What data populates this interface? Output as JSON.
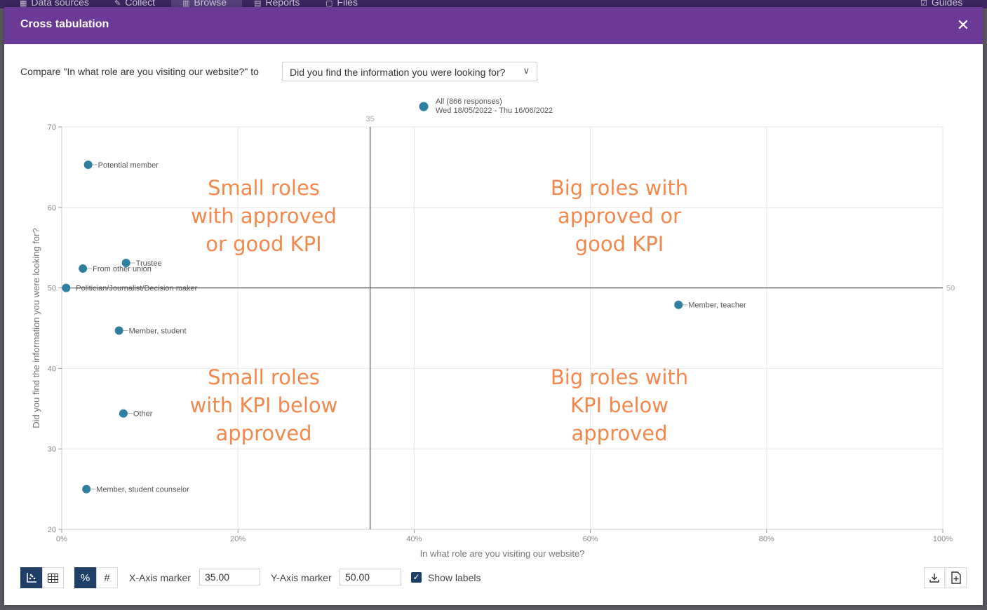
{
  "background_nav": {
    "items": [
      {
        "icon": "data-sources-icon",
        "label": "Data sources"
      },
      {
        "icon": "edit-icon",
        "label": "Collect"
      },
      {
        "icon": "chart-icon",
        "label": "Browse"
      },
      {
        "icon": "reports-icon",
        "label": "Reports"
      },
      {
        "icon": "folder-icon",
        "label": "Files"
      }
    ],
    "guides": "Guides"
  },
  "modal": {
    "title": "Cross tabulation",
    "compare_label": "Compare \"In what role are you visiting our website?\" to",
    "compare_select": "Did you find the information you were looking for?"
  },
  "colors": {
    "header": "#6b3a96",
    "point": "#2e7fa0",
    "annotation": "#f4874b",
    "active_button": "#1f3f66"
  },
  "chart_data": {
    "type": "scatter",
    "legend": {
      "label": "All (866 responses)",
      "date_range": "Wed 18/05/2022 - Thu 16/06/2022"
    },
    "xlabel": "In what role are you visiting our website?",
    "ylabel": "Did you find the information you were looking for?",
    "xlim": [
      0,
      100
    ],
    "ylim": [
      20,
      70
    ],
    "x_ticks": [
      0,
      20,
      40,
      60,
      80,
      100
    ],
    "x_tick_labels": [
      "0%",
      "20%",
      "40%",
      "60%",
      "80%",
      "100%"
    ],
    "y_ticks": [
      20,
      30,
      40,
      50,
      60,
      70
    ],
    "y_tick_labels": [
      "20",
      "30",
      "40",
      "50",
      "60",
      "70"
    ],
    "x_marker": 35,
    "x_marker_label": "35",
    "y_marker": 50,
    "y_marker_label": "50",
    "grid": true,
    "points": [
      {
        "label": "Potential member",
        "x": 3.0,
        "y": 65.3
      },
      {
        "label": "Trustee",
        "x": 7.3,
        "y": 53.1
      },
      {
        "label": "From other union",
        "x": 2.4,
        "y": 52.4
      },
      {
        "label": "Politician/Journalist/Decision maker",
        "x": 0.5,
        "y": 50.0
      },
      {
        "label": "Member, teacher",
        "x": 70.0,
        "y": 47.9
      },
      {
        "label": "Member, student",
        "x": 6.5,
        "y": 44.7
      },
      {
        "label": "Other",
        "x": 7.0,
        "y": 34.4
      },
      {
        "label": "Member, student counselor",
        "x": 2.8,
        "y": 25.0
      }
    ],
    "annotations": [
      {
        "lines": [
          "Small roles",
          "with approved",
          "or good KPI"
        ]
      },
      {
        "lines": [
          "Big roles with",
          "approved or",
          "good KPI"
        ]
      },
      {
        "lines": [
          "Small roles",
          "with KPI below",
          "approved"
        ]
      },
      {
        "lines": [
          "Big roles with",
          "KPI below",
          "approved"
        ]
      }
    ]
  },
  "toolbar": {
    "x_marker_label": "X-Axis marker",
    "x_marker_value": "35.00",
    "y_marker_label": "Y-Axis marker",
    "y_marker_value": "50.00",
    "show_labels": "Show labels",
    "show_labels_checked": true
  }
}
